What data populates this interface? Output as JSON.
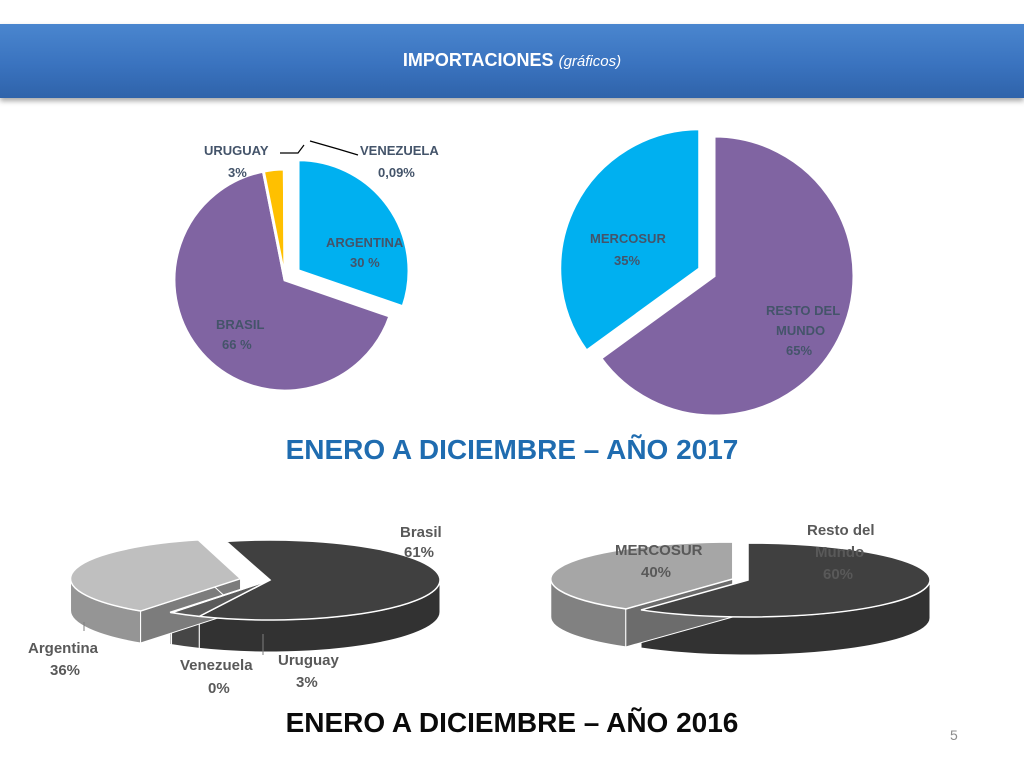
{
  "header": {
    "title": "IMPORTACIONES",
    "subtitle": "(gráficos)"
  },
  "headings": {
    "year_2017": "ENERO A DICIEMBRE – AÑO 2017",
    "year_2016": "ENERO A DICIEMBRE – AÑO 2016"
  },
  "page_number": "5",
  "colors": {
    "header": "#3a73bf",
    "blue": "#00b0f0",
    "purple": "#8064a2",
    "gold": "#ffc000"
  },
  "chart_data": [
    {
      "id": "importaciones-2017-paises",
      "type": "pie",
      "title": "",
      "series": [
        {
          "name": "ARGENTINA",
          "value": 30,
          "label_name": "ARGENTINA",
          "label_value": "30 %",
          "color": "#00b0f0",
          "exploded": true
        },
        {
          "name": "BRASIL",
          "value": 66,
          "label_name": "BRASIL",
          "label_value": "66 %",
          "color": "#8064a2"
        },
        {
          "name": "URUGUAY",
          "value": 3,
          "label_name": "URUGUAY",
          "label_value": "3%",
          "color": "#ffc000"
        },
        {
          "name": "VENEZUELA",
          "value": 0.09,
          "label_name": "VENEZUELA",
          "label_value": "0,09%",
          "color": "#c00000"
        }
      ]
    },
    {
      "id": "importaciones-2017-regiones",
      "type": "pie",
      "title": "",
      "series": [
        {
          "name": "RESTO DEL MUNDO",
          "value": 65,
          "label_name": "RESTO DEL",
          "label_name2": "MUNDO",
          "label_value": "65%",
          "color": "#8064a2"
        },
        {
          "name": "MERCOSUR",
          "value": 35,
          "label_name": "MERCOSUR",
          "label_value": "35%",
          "color": "#00b0f0",
          "exploded": true
        }
      ]
    },
    {
      "id": "importaciones-2016-paises",
      "type": "pie",
      "style": "3d",
      "title": "",
      "series": [
        {
          "name": "Brasil",
          "value": 61,
          "label_name": "Brasil",
          "label_value": "61%",
          "color": "#404040"
        },
        {
          "name": "Uruguay",
          "value": 3,
          "label_name": "Uruguay",
          "label_value": "3%",
          "color": "#5a5a5a"
        },
        {
          "name": "Venezuela",
          "value": 0,
          "label_name": "Venezuela",
          "label_value": "0%",
          "color": "#7f7f7f"
        },
        {
          "name": "Argentina",
          "value": 36,
          "label_name": "Argentina",
          "label_value": "36%",
          "color": "#bfbfbf"
        }
      ]
    },
    {
      "id": "importaciones-2016-regiones",
      "type": "pie",
      "style": "3d",
      "title": "",
      "series": [
        {
          "name": "Resto del Mundo",
          "value": 60,
          "label_name": "Resto del",
          "label_name2": "Mundo",
          "label_value": "60%",
          "color": "#404040"
        },
        {
          "name": "MERCOSUR",
          "value": 40,
          "label_name": "MERCOSUR",
          "label_value": "40%",
          "color": "#a6a6a6"
        }
      ]
    }
  ]
}
